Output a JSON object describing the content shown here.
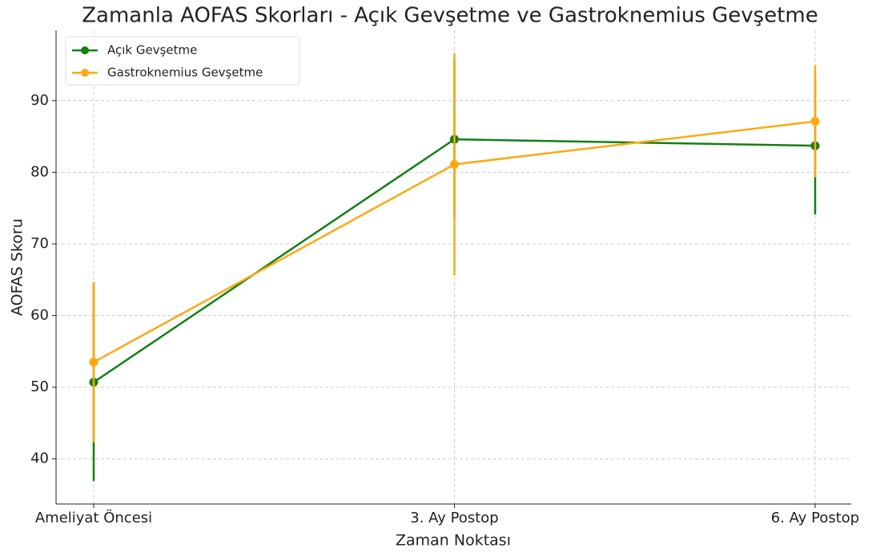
{
  "chart_data": {
    "type": "line",
    "title": "Zamanla AOFAS Skorları - Açık Gevşetme ve Gastroknemius Gevşetme",
    "x_label": "Zaman Noktası",
    "y_label": "AOFAS Skoru",
    "categories": [
      "Ameliyat Öncesi",
      "3. Ay Postop",
      "6. Ay Postop"
    ],
    "series": [
      {
        "name": "Açık Gevşetme",
        "color": "#138013",
        "values": [
          50.7,
          84.6,
          83.7
        ],
        "errors": [
          13.8,
          11,
          9.6
        ]
      },
      {
        "name": "Gastroknemius Gevşetme",
        "color": "#ffa812",
        "values": [
          53.5,
          81.1,
          87.1
        ],
        "errors": [
          11.2,
          15.5,
          7.8
        ]
      }
    ],
    "ylim": [
      33.7,
      99.8
    ],
    "yticks": [
      40,
      50,
      60,
      70,
      80,
      90
    ],
    "grid": true,
    "legend": "upper left"
  }
}
